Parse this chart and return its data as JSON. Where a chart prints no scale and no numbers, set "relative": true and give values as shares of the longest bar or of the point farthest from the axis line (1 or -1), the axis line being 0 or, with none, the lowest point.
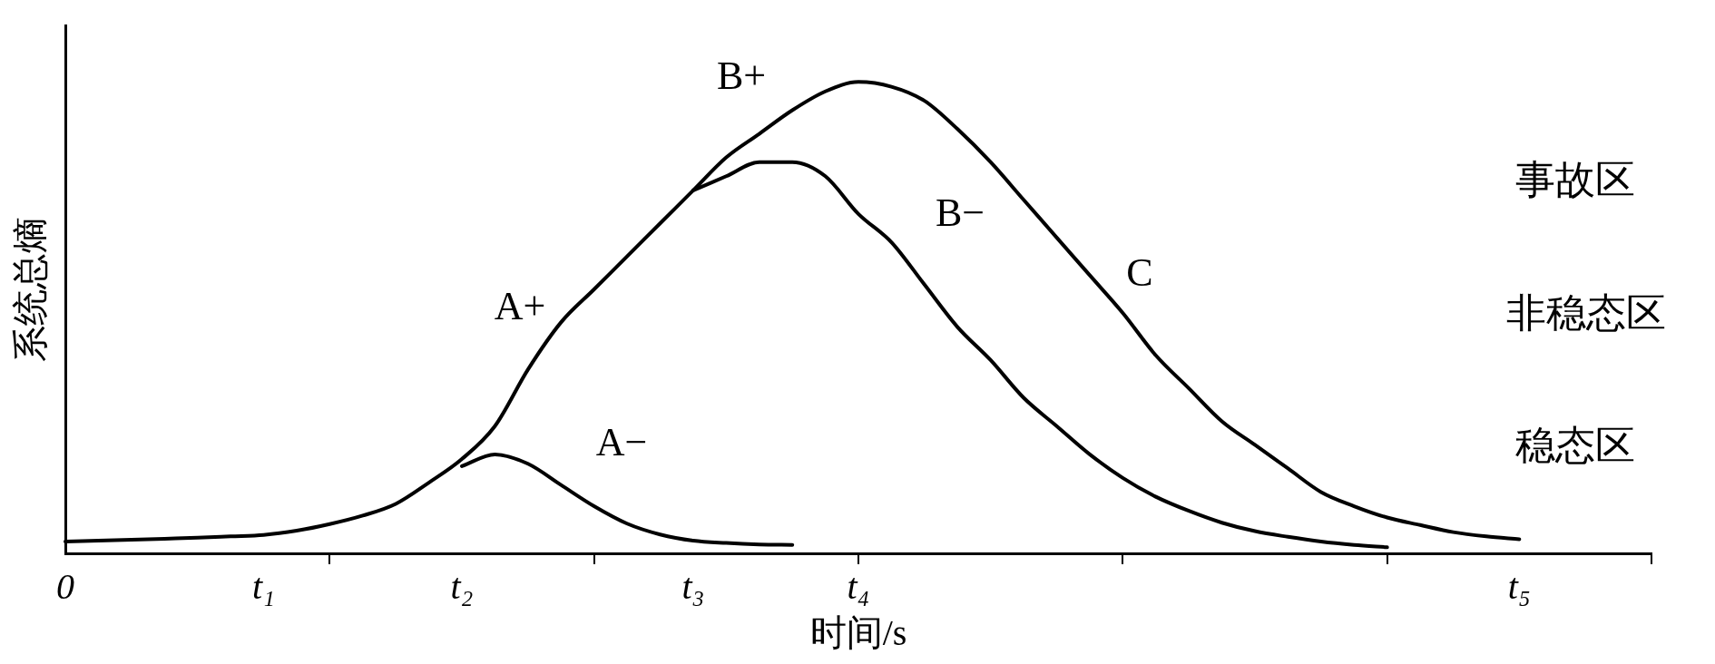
{
  "chart_data": {
    "type": "line",
    "relative": true,
    "xlabel": "时间/s",
    "ylabel": "系统总熵",
    "marker": "none",
    "grid": false,
    "legend": false,
    "categories": [
      "0",
      null,
      null,
      null,
      null,
      null,
      "t₁",
      null,
      null,
      null,
      null,
      null,
      "t₂",
      null,
      null,
      null,
      null,
      null,
      null,
      "t₃",
      null,
      null,
      null,
      null,
      "t₄",
      null,
      null,
      null,
      null,
      null,
      null,
      null,
      null,
      null,
      null,
      null,
      null,
      null,
      null,
      null,
      null,
      null,
      null,
      null,
      "t₅",
      null,
      null,
      null,
      null
    ],
    "series": [
      {
        "color": "#000000",
        "values": [
          0.025,
          0.027,
          0.029,
          0.031,
          0.033,
          0.036,
          0.039,
          0.048,
          0.062,
          0.08,
          0.105,
          0.15,
          0.2,
          0.27,
          0.39,
          0.49,
          0.56,
          0.63,
          0.7,
          0.77,
          0.84,
          0.89,
          0.94,
          0.98,
          1.0,
          0.99,
          0.96,
          0.9,
          0.83,
          0.75,
          0.67,
          0.59,
          0.51,
          0.42,
          0.35,
          0.28,
          0.23,
          0.18,
          0.13,
          0.1,
          0.076,
          0.06,
          0.045,
          0.036,
          0.03,
          null,
          null,
          null,
          null
        ]
      },
      {
        "color": "#000000",
        "values": [
          null,
          null,
          null,
          null,
          null,
          null,
          null,
          null,
          null,
          null,
          null,
          null,
          null,
          null,
          null,
          null,
          null,
          null,
          null,
          0.77,
          0.8,
          0.83,
          0.83,
          0.8,
          0.72,
          0.66,
          0.57,
          0.48,
          0.41,
          0.33,
          0.27,
          0.21,
          0.16,
          0.12,
          0.09,
          0.065,
          0.047,
          0.035,
          0.025,
          0.018,
          0.013,
          null,
          null,
          null,
          null,
          null,
          null,
          null,
          null
        ]
      },
      {
        "color": "#000000",
        "values": [
          null,
          null,
          null,
          null,
          null,
          null,
          null,
          null,
          null,
          null,
          null,
          null,
          0.185,
          0.21,
          0.19,
          0.145,
          0.1,
          0.063,
          0.04,
          0.027,
          0.022,
          0.019,
          0.018,
          null,
          null,
          null,
          null,
          null,
          null,
          null,
          null,
          null,
          null,
          null,
          null,
          null,
          null,
          null,
          null,
          null,
          null,
          null,
          null,
          null,
          null,
          null,
          null,
          null,
          null
        ]
      }
    ],
    "annotations": [
      "A+",
      "B+",
      "A−",
      "B−",
      "C",
      "事故区",
      "非稳态区",
      "稳态区"
    ]
  }
}
